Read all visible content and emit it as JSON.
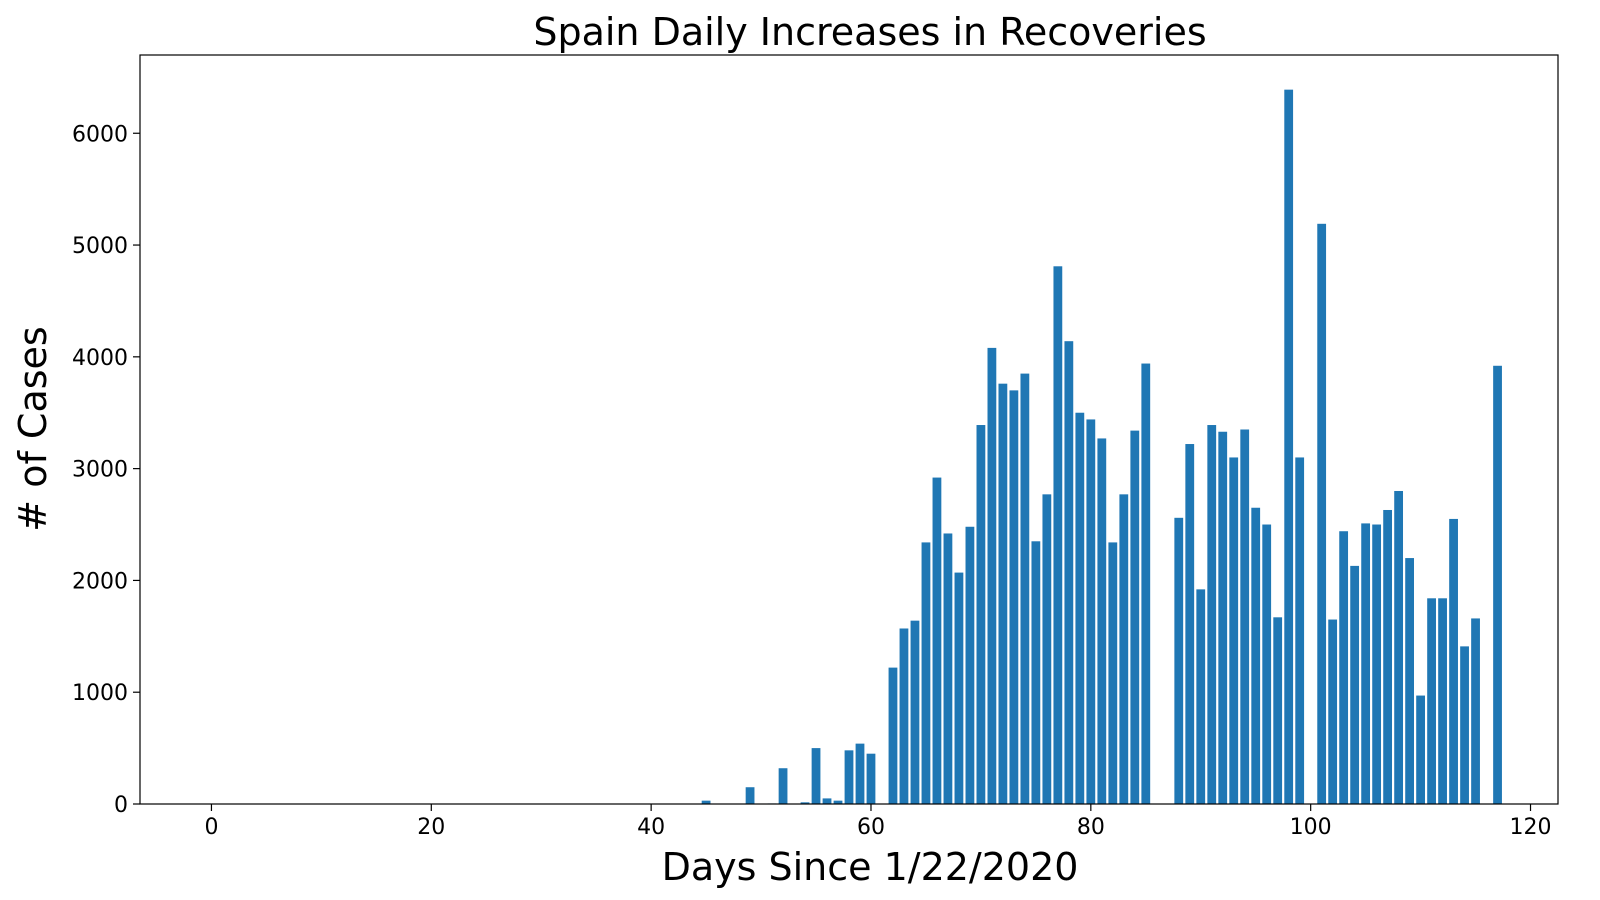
{
  "chart_data": {
    "type": "bar",
    "title": "Spain Daily Increases in Recoveries",
    "xlabel": "Days Since 1/22/2020",
    "ylabel": "# of Cases",
    "xlim": [
      -6.5,
      122.5
    ],
    "ylim": [
      0,
      6700
    ],
    "xticks": [
      0,
      20,
      40,
      60,
      80,
      100,
      120
    ],
    "yticks": [
      0,
      1000,
      2000,
      3000,
      4000,
      5000,
      6000
    ],
    "grid": false,
    "bar_color": "#1f77b4",
    "x": [
      24,
      45,
      47,
      49,
      51,
      52,
      54,
      55,
      56,
      57,
      58,
      59,
      60,
      61,
      62,
      63,
      64,
      65,
      66,
      67,
      68,
      69,
      70,
      71,
      72,
      73,
      74,
      75,
      76,
      77,
      78,
      79,
      80,
      81,
      82,
      83,
      84,
      85,
      88,
      89,
      90,
      91,
      92,
      93,
      94,
      95,
      96,
      97,
      98,
      99,
      101,
      102,
      103,
      104,
      105,
      106,
      107,
      108,
      109,
      110,
      111,
      112,
      113,
      114,
      115,
      117
    ],
    "values": [
      2,
      30,
      2,
      150,
      5,
      320,
      15,
      500,
      50,
      30,
      480,
      540,
      450,
      0,
      1220,
      1570,
      1640,
      2340,
      2920,
      2420,
      2070,
      2480,
      3390,
      4080,
      3760,
      3700,
      3850,
      2350,
      2770,
      4810,
      4140,
      3500,
      3440,
      3270,
      2340,
      2770,
      3340,
      3940,
      2560,
      3220,
      1920,
      3390,
      3330,
      3100,
      3350,
      2650,
      2500,
      1670,
      6390,
      3100,
      5190,
      1650,
      2440,
      2130,
      2510,
      2500,
      2630,
      2800,
      2200,
      970,
      1840,
      1840,
      2550,
      1410,
      1660,
      3920
    ]
  }
}
